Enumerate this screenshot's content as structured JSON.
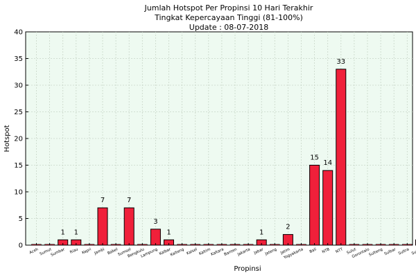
{
  "chart_data": {
    "type": "bar",
    "title": [
      "Jumlah Hotspot Per Propinsi 10 Hari Terakhir",
      "Tingkat Kepercayaan Tinggi (81-100%)",
      "Update : 08-07-2018"
    ],
    "xlabel": "Propinsi",
    "ylabel": "Hotspot",
    "ylim": [
      0,
      40
    ],
    "yticks": [
      0,
      5,
      10,
      15,
      20,
      25,
      30,
      35,
      40
    ],
    "grid": true,
    "bar_color": "#f0203a",
    "plot_background": "#eefaf1",
    "categories": [
      "Aceh",
      "Sumut",
      "Sumbar",
      "Riau",
      "Kepri",
      "Jambi",
      "Babel",
      "Sumsel",
      "Bengkulu",
      "Lampung",
      "Kalbar",
      "Kalteng",
      "Kalsel",
      "Kaltim",
      "Kaltara",
      "Banten",
      "Jakarta",
      "Jabar",
      "Jateng",
      "Jatim",
      "Yogyakarta",
      "Bali",
      "NTB",
      "NTT",
      "Sulut",
      "Gorontalo",
      "Sulteng",
      "Sulbar",
      "Sultra",
      "Sulsel"
    ],
    "values": [
      0,
      0,
      1,
      1,
      0,
      7,
      0,
      7,
      0,
      3,
      1,
      0,
      0,
      0,
      0,
      0,
      0,
      1,
      0,
      2,
      0,
      15,
      14,
      33,
      0,
      0,
      0,
      0,
      0,
      1
    ]
  }
}
